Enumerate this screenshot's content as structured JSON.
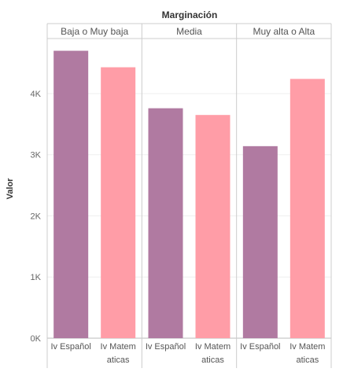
{
  "chart_data": {
    "type": "bar",
    "title": "Marginación",
    "ylabel": "Valor",
    "ylim": [
      0,
      4900
    ],
    "yticks": [
      {
        "value": 0,
        "label": "0K"
      },
      {
        "value": 1000,
        "label": "1K"
      },
      {
        "value": 2000,
        "label": "2K"
      },
      {
        "value": 3000,
        "label": "3K"
      },
      {
        "value": 4000,
        "label": "4K"
      }
    ],
    "colors": {
      "Iv Español": "#b07aa1",
      "Iv Matematicas": "#ff9da7"
    },
    "panels": [
      {
        "header": "Baja o Muy baja",
        "bars": [
          {
            "category": "Iv Español",
            "label_lines": [
              "Iv Español"
            ],
            "value": 4700
          },
          {
            "category": "Iv Matematicas",
            "label_lines": [
              "Iv Matem",
              "aticas"
            ],
            "value": 4430
          }
        ]
      },
      {
        "header": "Media",
        "bars": [
          {
            "category": "Iv Español",
            "label_lines": [
              "Iv Español"
            ],
            "value": 3760
          },
          {
            "category": "Iv Matematicas",
            "label_lines": [
              "Iv Matem",
              "aticas"
            ],
            "value": 3650
          }
        ]
      },
      {
        "header": "Muy alta o Alta",
        "bars": [
          {
            "category": "Iv Español",
            "label_lines": [
              "Iv Español"
            ],
            "value": 3140
          },
          {
            "category": "Iv Matematicas",
            "label_lines": [
              "Iv Matem",
              "aticas"
            ],
            "value": 4240
          }
        ]
      }
    ]
  }
}
